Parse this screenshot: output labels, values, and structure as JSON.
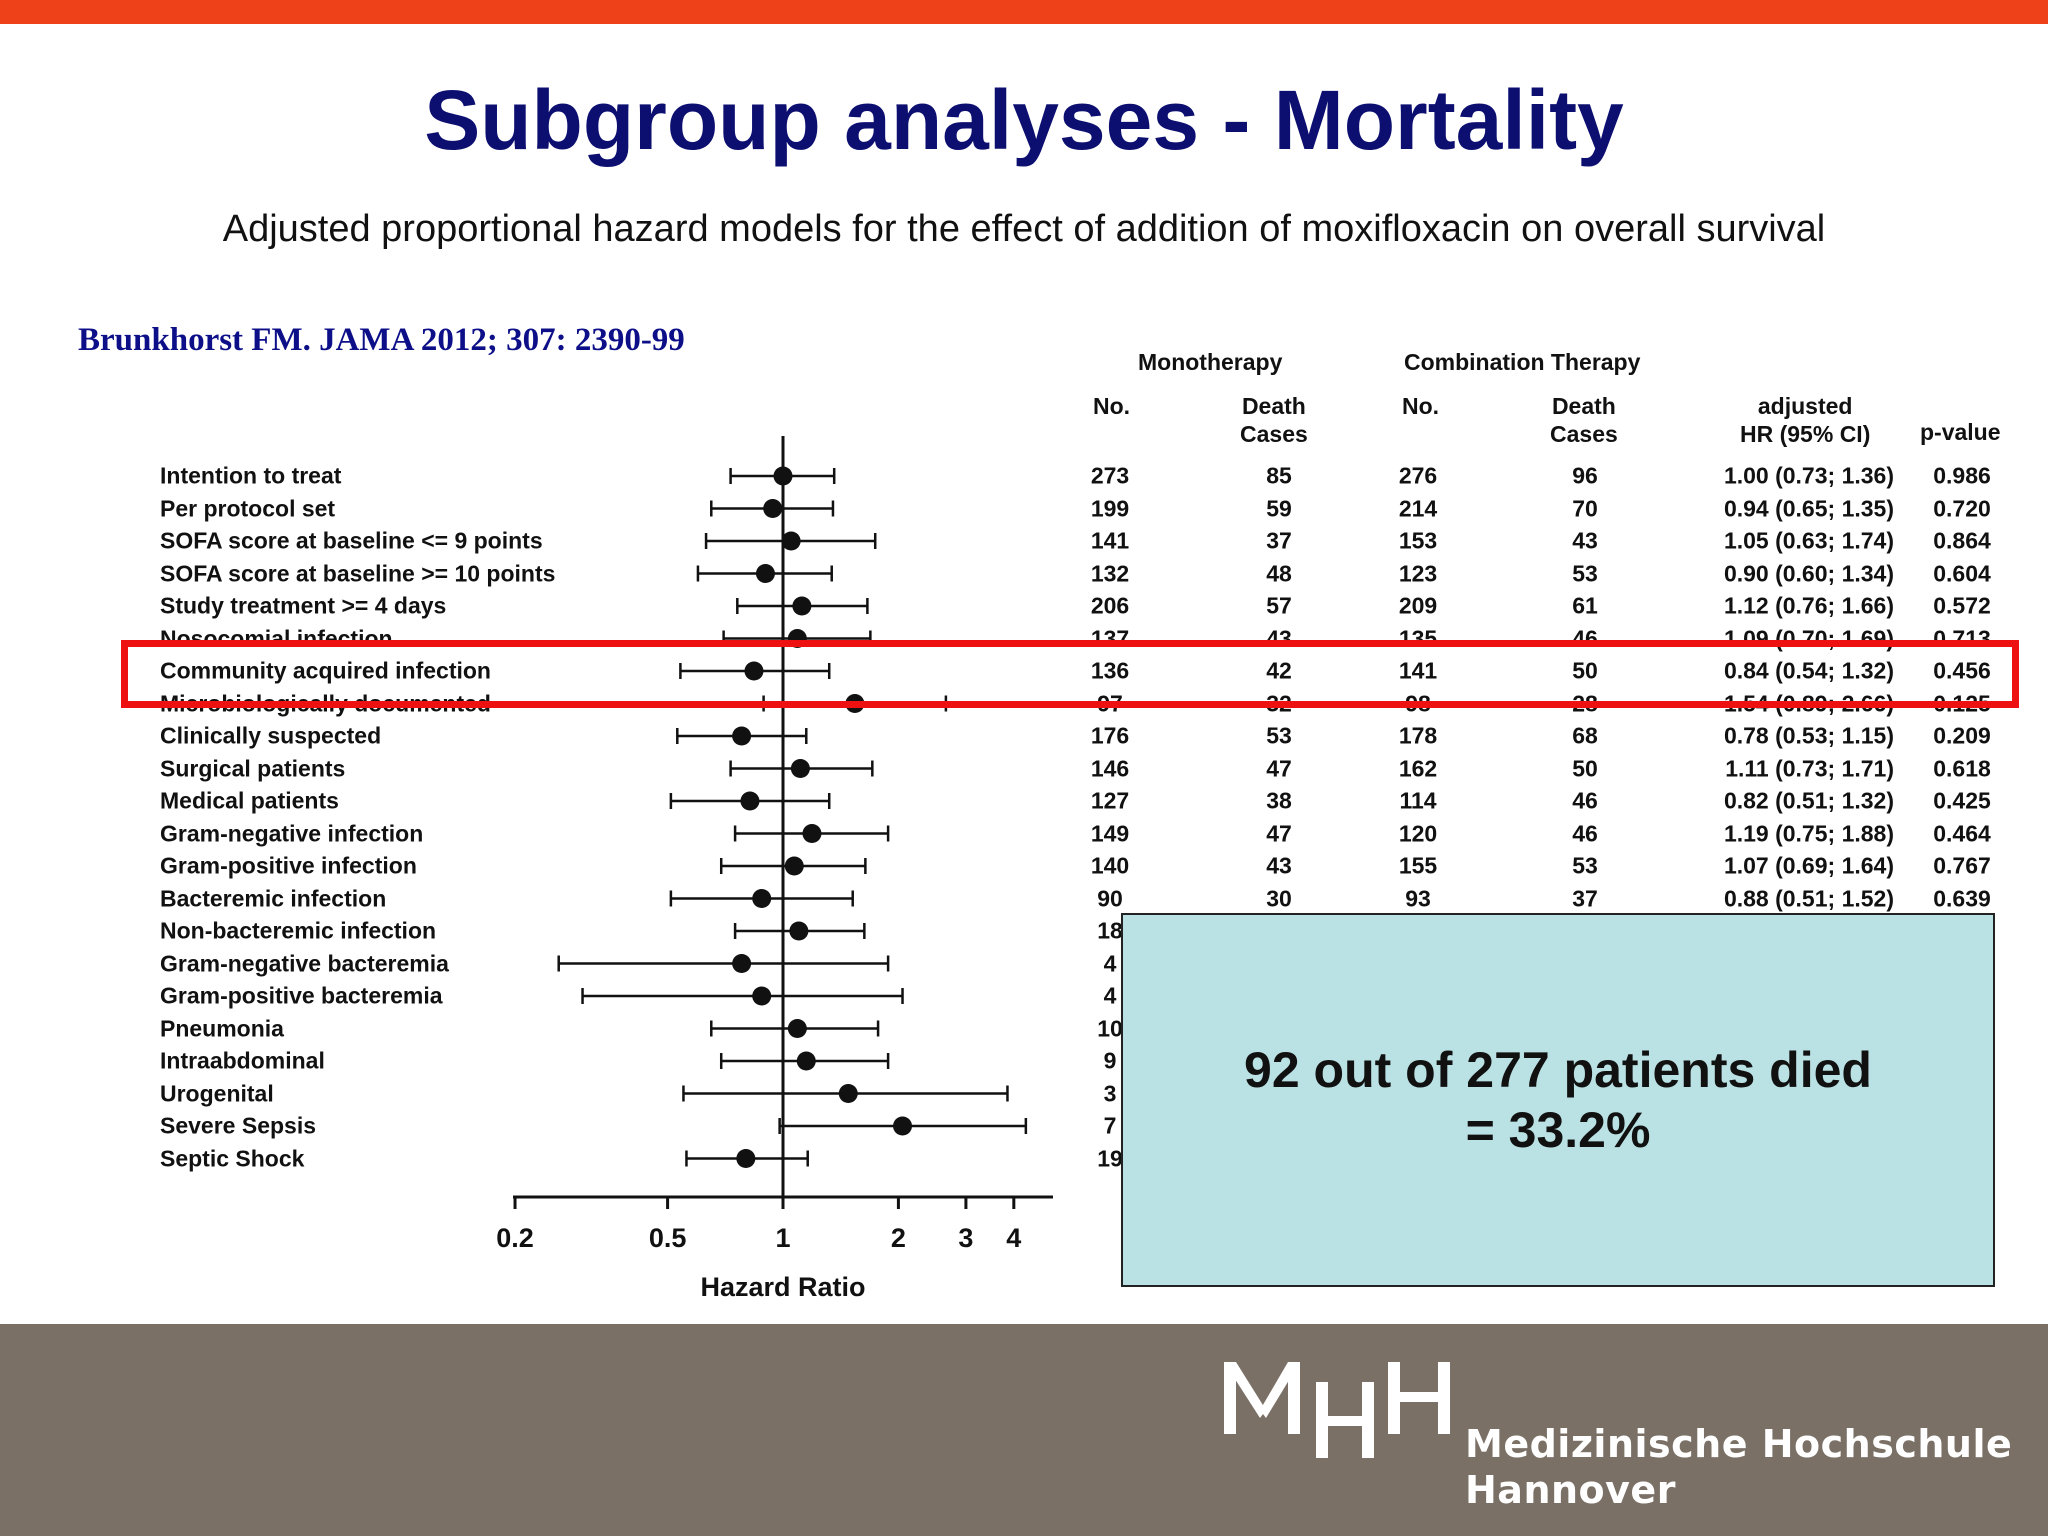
{
  "slide": {
    "title": "Subgroup analyses - Mortality",
    "subtitle": "Adjusted proportional hazard models for the effect of addition of moxifloxacin on overall survival",
    "citation": "Brunkhorst FM. JAMA 2012; 307: 2390-99"
  },
  "table_headers": {
    "mono": "Monotherapy",
    "combo": "Combination Therapy",
    "no": "No.",
    "death_cases_line1": "Death",
    "death_cases_line2": "Cases",
    "hr_line1": "adjusted",
    "hr_line2": "HR (95% CI)",
    "pvalue": "p-value"
  },
  "callout": {
    "line1": "92 out of 277 patients died",
    "line2": "= 33.2%"
  },
  "logo": {
    "name_line1": "Medizinische Hochschule",
    "name_line2": "Hannover"
  },
  "colors": {
    "top_bar": "#ee4019",
    "title": "#0c0f70",
    "citation": "#0c0f88",
    "highlight": "#ee1111",
    "callout_bg": "#bae1e3",
    "footer": "#7a7066"
  },
  "chart_data": {
    "type": "forest",
    "xlabel": "Hazard Ratio",
    "x_scale": "log",
    "xlim": [
      0.13,
      5.0
    ],
    "reference_line": 1,
    "xticks": [
      0.2,
      0.5,
      1,
      2,
      3,
      4
    ],
    "xtick_labels": [
      "0.2",
      "0.5",
      "1",
      "2",
      "3",
      "4"
    ],
    "highlighted_row": "Community acquired infection",
    "rows": [
      {
        "label": "Intention to treat",
        "hr": 1.0,
        "lo": 0.73,
        "hi": 1.36,
        "mono_no": "273",
        "mono_death": "85",
        "combo_no": "276",
        "combo_death": "96",
        "hr_text": "1.00 (0.73; 1.36)",
        "p": "0.986"
      },
      {
        "label": "Per protocol set",
        "hr": 0.94,
        "lo": 0.65,
        "hi": 1.35,
        "mono_no": "199",
        "mono_death": "59",
        "combo_no": "214",
        "combo_death": "70",
        "hr_text": "0.94 (0.65; 1.35)",
        "p": "0.720"
      },
      {
        "label": "SOFA score at baseline <= 9 points",
        "hr": 1.05,
        "lo": 0.63,
        "hi": 1.74,
        "mono_no": "141",
        "mono_death": "37",
        "combo_no": "153",
        "combo_death": "43",
        "hr_text": "1.05 (0.63; 1.74)",
        "p": "0.864"
      },
      {
        "label": "SOFA score at baseline >= 10 points",
        "hr": 0.9,
        "lo": 0.6,
        "hi": 1.34,
        "mono_no": "132",
        "mono_death": "48",
        "combo_no": "123",
        "combo_death": "53",
        "hr_text": "0.90 (0.60; 1.34)",
        "p": "0.604"
      },
      {
        "label": "Study treatment >= 4 days",
        "hr": 1.12,
        "lo": 0.76,
        "hi": 1.66,
        "mono_no": "206",
        "mono_death": "57",
        "combo_no": "209",
        "combo_death": "61",
        "hr_text": "1.12 (0.76; 1.66)",
        "p": "0.572"
      },
      {
        "label": "Nosocomial infection",
        "hr": 1.09,
        "lo": 0.7,
        "hi": 1.69,
        "mono_no": "137",
        "mono_death": "43",
        "combo_no": "135",
        "combo_death": "46",
        "hr_text": "1.09 (0.70; 1.69)",
        "p": "0.713"
      },
      {
        "label": "Community acquired infection",
        "hr": 0.84,
        "lo": 0.54,
        "hi": 1.32,
        "mono_no": "136",
        "mono_death": "42",
        "combo_no": "141",
        "combo_death": "50",
        "hr_text": "0.84 (0.54; 1.32)",
        "p": "0.456"
      },
      {
        "label": "Microbiologically documented",
        "hr": 1.54,
        "lo": 0.89,
        "hi": 2.66,
        "mono_no": "97",
        "mono_death": "32",
        "combo_no": "98",
        "combo_death": "28",
        "hr_text": "1.54 (0.89; 2.66)",
        "p": "0.125"
      },
      {
        "label": "Clinically suspected",
        "hr": 0.78,
        "lo": 0.53,
        "hi": 1.15,
        "mono_no": "176",
        "mono_death": "53",
        "combo_no": "178",
        "combo_death": "68",
        "hr_text": "0.78 (0.53; 1.15)",
        "p": "0.209"
      },
      {
        "label": "Surgical patients",
        "hr": 1.11,
        "lo": 0.73,
        "hi": 1.71,
        "mono_no": "146",
        "mono_death": "47",
        "combo_no": "162",
        "combo_death": "50",
        "hr_text": "1.11 (0.73; 1.71)",
        "p": "0.618"
      },
      {
        "label": "Medical patients",
        "hr": 0.82,
        "lo": 0.51,
        "hi": 1.32,
        "mono_no": "127",
        "mono_death": "38",
        "combo_no": "114",
        "combo_death": "46",
        "hr_text": "0.82 (0.51; 1.32)",
        "p": "0.425"
      },
      {
        "label": "Gram-negative infection",
        "hr": 1.19,
        "lo": 0.75,
        "hi": 1.88,
        "mono_no": "149",
        "mono_death": "47",
        "combo_no": "120",
        "combo_death": "46",
        "hr_text": "1.19 (0.75; 1.88)",
        "p": "0.464"
      },
      {
        "label": "Gram-positive infection",
        "hr": 1.07,
        "lo": 0.69,
        "hi": 1.64,
        "mono_no": "140",
        "mono_death": "43",
        "combo_no": "155",
        "combo_death": "53",
        "hr_text": "1.07 (0.69; 1.64)",
        "p": "0.767"
      },
      {
        "label": "Bacteremic infection",
        "hr": 0.88,
        "lo": 0.51,
        "hi": 1.52,
        "mono_no": "90",
        "mono_death": "30",
        "combo_no": "93",
        "combo_death": "37",
        "hr_text": "0.88 (0.51; 1.52)",
        "p": "0.639"
      },
      {
        "label": "Non-bacteremic infection",
        "hr": 1.1,
        "lo": 0.75,
        "hi": 1.63,
        "mono_no": "18",
        "mono_death": "",
        "combo_no": "",
        "combo_death": "",
        "hr_text": "",
        "p": ""
      },
      {
        "label": "Gram-negative bacteremia",
        "hr": 0.78,
        "lo": 0.26,
        "hi": 1.88,
        "mono_no": "4",
        "mono_death": "",
        "combo_no": "",
        "combo_death": "",
        "hr_text": "",
        "p": ""
      },
      {
        "label": "Gram-positive bacteremia",
        "hr": 0.88,
        "lo": 0.3,
        "hi": 2.05,
        "mono_no": "4",
        "mono_death": "",
        "combo_no": "",
        "combo_death": "",
        "hr_text": "",
        "p": ""
      },
      {
        "label": "Pneumonia",
        "hr": 1.09,
        "lo": 0.65,
        "hi": 1.77,
        "mono_no": "10",
        "mono_death": "",
        "combo_no": "",
        "combo_death": "",
        "hr_text": "",
        "p": ""
      },
      {
        "label": "Intraabdominal",
        "hr": 1.15,
        "lo": 0.69,
        "hi": 1.88,
        "mono_no": "9",
        "mono_death": "",
        "combo_no": "",
        "combo_death": "",
        "hr_text": "",
        "p": ""
      },
      {
        "label": "Urogenital",
        "hr": 1.48,
        "lo": 0.55,
        "hi": 3.85,
        "mono_no": "3",
        "mono_death": "",
        "combo_no": "",
        "combo_death": "",
        "hr_text": "",
        "p": ""
      },
      {
        "label": "Severe Sepsis",
        "hr": 2.05,
        "lo": 0.98,
        "hi": 4.3,
        "mono_no": "7",
        "mono_death": "",
        "combo_no": "",
        "combo_death": "",
        "hr_text": "",
        "p": ""
      },
      {
        "label": "Septic Shock",
        "hr": 0.8,
        "lo": 0.56,
        "hi": 1.16,
        "mono_no": "19",
        "mono_death": "",
        "combo_no": "",
        "combo_death": "",
        "hr_text": "",
        "p": ""
      }
    ]
  }
}
